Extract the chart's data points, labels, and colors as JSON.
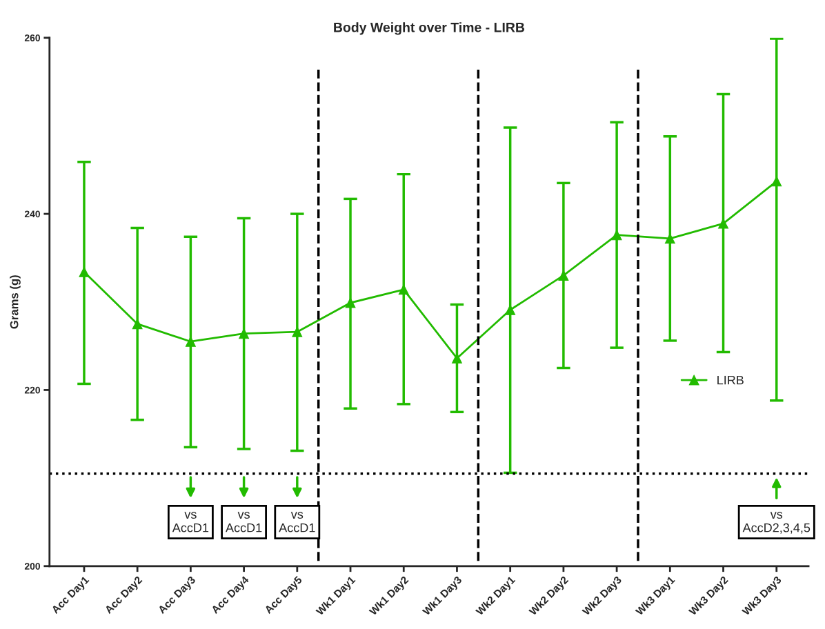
{
  "chart_data": {
    "type": "line",
    "title": "Body Weight over Time - LIRB",
    "ylabel": "Grams (g)",
    "categories": [
      "Acc Day1",
      "Acc Day2",
      "Acc Day3",
      "Acc Day4",
      "Acc Day5",
      "Wk1 Day1",
      "Wk1 Day2",
      "Wk1 Day3",
      "Wk2 Day1",
      "Wk2 Day2",
      "Wk2 Day3",
      "Wk3 Day1",
      "Wk3 Day2",
      "Wk3 Day3"
    ],
    "series": [
      {
        "name": "LIRB",
        "color": "#22bb00",
        "values": [
          233.4,
          227.5,
          225.5,
          226.4,
          226.6,
          229.9,
          231.4,
          223.6,
          229.1,
          233.0,
          237.6,
          237.2,
          238.9,
          243.7
        ],
        "errors": [
          [
            220.7,
            245.9
          ],
          [
            216.6,
            238.4
          ],
          [
            213.5,
            237.4
          ],
          [
            213.3,
            239.5
          ],
          [
            213.1,
            240.0
          ],
          [
            217.9,
            241.7
          ],
          [
            218.4,
            244.5
          ],
          [
            217.5,
            229.7
          ],
          [
            210.6,
            249.8
          ],
          [
            222.5,
            243.5
          ],
          [
            224.8,
            250.4
          ],
          [
            225.6,
            248.8
          ],
          [
            224.3,
            253.6
          ],
          [
            218.8,
            259.9
          ]
        ]
      }
    ],
    "ylim": [
      200,
      260
    ],
    "yticks": [
      200,
      220,
      240,
      260
    ],
    "grid": false,
    "legend": "right",
    "marker": "triangle",
    "line_style": "solid",
    "ref_lines": [
      {
        "axis": "y",
        "value": 210.5,
        "line_style": "dotted",
        "color": "#000000"
      }
    ],
    "annotations": [
      "vs\nAccD1",
      "vs\nAccD1",
      "vs\nAccD1",
      "vs\nAccD2,3,4,5"
    ]
  }
}
